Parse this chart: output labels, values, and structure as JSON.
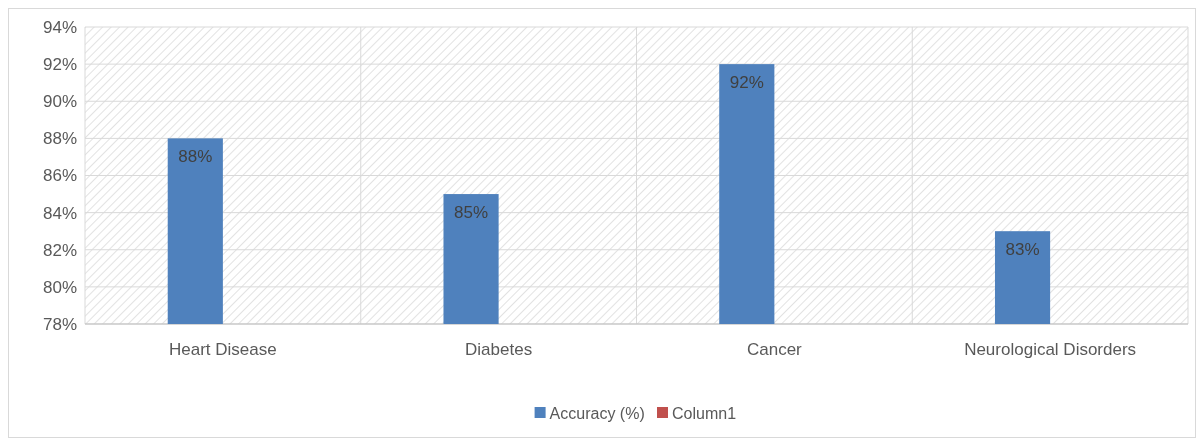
{
  "chart_data": {
    "type": "bar",
    "categories": [
      "Heart Disease",
      "Diabetes",
      "Cancer",
      "Neurological Disorders"
    ],
    "series": [
      {
        "name": "Accuracy (%)",
        "color": "#4f81bd",
        "values": [
          88,
          85,
          92,
          83
        ],
        "value_labels": [
          "88%",
          "85%",
          "92%",
          "83%"
        ]
      },
      {
        "name": "Column1",
        "color": "#c0504d",
        "values": [
          null,
          null,
          null,
          null
        ]
      }
    ],
    "ylim": [
      78,
      94
    ],
    "yticks": [
      {
        "value": 78,
        "label": "78%"
      },
      {
        "value": 80,
        "label": "80%"
      },
      {
        "value": 82,
        "label": "82%"
      },
      {
        "value": 84,
        "label": "84%"
      },
      {
        "value": 86,
        "label": "86%"
      },
      {
        "value": 88,
        "label": "88%"
      },
      {
        "value": 90,
        "label": "90%"
      },
      {
        "value": 92,
        "label": "92%"
      },
      {
        "value": 94,
        "label": "94%"
      }
    ],
    "grid": true,
    "legend": "bottom"
  }
}
